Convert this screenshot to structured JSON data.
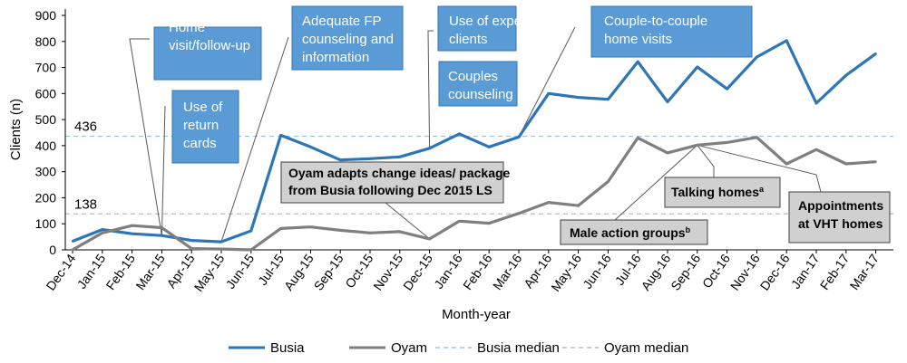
{
  "chart_data": {
    "type": "line",
    "xlabel": "Month-year",
    "ylabel": "Clients (n)",
    "ylim": [
      0,
      900
    ],
    "yticks": [
      0,
      100,
      200,
      300,
      400,
      500,
      600,
      700,
      800,
      900
    ],
    "categories": [
      "Dec-14",
      "Jan-15",
      "Feb-15",
      "Mar-15",
      "Apr-15",
      "May-15",
      "Jun-15",
      "Jul-15",
      "Aug-15",
      "Sep-15",
      "Oct-15",
      "Nov-15",
      "Dec-15",
      "Jan-16",
      "Feb-16",
      "Mar-16",
      "Apr-16",
      "May-16",
      "Jun-16",
      "Jul-16",
      "Aug-16",
      "Sep-16",
      "Oct-16",
      "Nov-16",
      "Dec-16",
      "Jan-17",
      "Feb-17",
      "Mar-17"
    ],
    "series": [
      {
        "name": "Busia",
        "color": "#2e75b6",
        "values": [
          33,
          78,
          62,
          55,
          36,
          31,
          73,
          440,
          395,
          345,
          350,
          357,
          390,
          445,
          395,
          433,
          600,
          585,
          578,
          722,
          568,
          702,
          618,
          740,
          803,
          563,
          670,
          753
        ]
      },
      {
        "name": "Oyam",
        "color": "#7f7f7f",
        "values": [
          0,
          65,
          93,
          85,
          5,
          3,
          0,
          82,
          88,
          75,
          65,
          70,
          42,
          110,
          102,
          140,
          182,
          170,
          262,
          430,
          372,
          402,
          412,
          432,
          330,
          385,
          330,
          338
        ]
      }
    ],
    "reference_lines": [
      {
        "name": "Busia median",
        "value": 436,
        "label": "436",
        "color": "#9dc3e6"
      },
      {
        "name": "Oyam median",
        "value": 138,
        "label": "138",
        "color": "#bfbfbf"
      }
    ],
    "annotations_blue": [
      {
        "lines": [
          "Home",
          "visit/follow-up"
        ],
        "target": "Mar-15"
      },
      {
        "lines": [
          "Use of",
          "return",
          "cards"
        ],
        "target": "Mar-15"
      },
      {
        "lines": [
          "Adequate FP",
          "counseling and",
          "information"
        ],
        "target": "May-15"
      },
      {
        "lines": [
          "Use of expert",
          "clients"
        ],
        "target": "Dec-15"
      },
      {
        "lines": [
          "Couples",
          "counseling"
        ],
        "target": "Jan-16"
      },
      {
        "lines": [
          "Couple-to-couple",
          "home visits"
        ],
        "target": "Mar-16"
      }
    ],
    "annotations_gray": [
      {
        "lines": [
          "Oyam adapts change ideas/ package",
          "from Busia following Dec 2015 LS"
        ],
        "target": "Dec-15"
      },
      {
        "lines": [
          "Male action groups"
        ],
        "sup": "b",
        "target": "Sep-16"
      },
      {
        "lines": [
          "Talking homes"
        ],
        "sup": "a",
        "target": "Sep-16"
      },
      {
        "lines": [
          "Appointments",
          "at VHT homes"
        ],
        "target": "Sep-16"
      }
    ],
    "legend": [
      {
        "label": "Busia",
        "style": "solid",
        "color": "#2e75b6"
      },
      {
        "label": "Oyam",
        "style": "solid",
        "color": "#7f7f7f"
      },
      {
        "label": "Busia median",
        "style": "dashed",
        "color": "#9dc3e6"
      },
      {
        "label": "Oyam median",
        "style": "dashed",
        "color": "#bfbfbf"
      }
    ],
    "legend_position": "bottom",
    "grid": false
  }
}
